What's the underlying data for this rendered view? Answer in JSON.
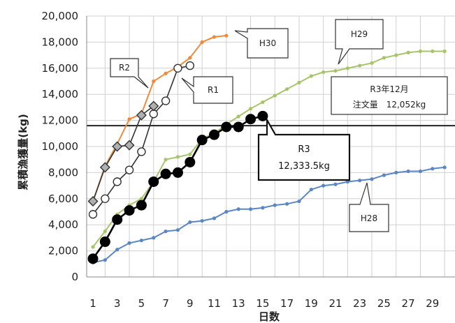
{
  "chart_data": {
    "type": "line",
    "xlabel": "日数",
    "ylabel": "累積漁獲量(kg)",
    "xlim": [
      1,
      30
    ],
    "ylim": [
      0,
      20000
    ],
    "x_ticks": [
      "1",
      "3",
      "5",
      "7",
      "9",
      "11",
      "13",
      "15",
      "17",
      "19",
      "21",
      "23",
      "25",
      "27",
      "29"
    ],
    "y_ticks": [
      "0",
      "2,000",
      "4,000",
      "6,000",
      "8,000",
      "10,000",
      "12,000",
      "14,000",
      "16,000",
      "18,000",
      "20,000"
    ],
    "grid": true,
    "reference_line": {
      "value": 11600,
      "color": "#222222"
    },
    "series": [
      {
        "name": "H30",
        "color": "#f08a3a",
        "marker": "dot",
        "x": [
          1,
          2,
          3,
          4,
          5,
          6,
          7,
          8,
          9,
          10,
          11,
          12
        ],
        "values": [
          5800,
          8500,
          10200,
          12100,
          12500,
          15000,
          15600,
          16100,
          16800,
          18000,
          18400,
          18500
        ]
      },
      {
        "name": "H29",
        "color": "#a8c46a",
        "marker": "dot",
        "x": [
          1,
          2,
          3,
          4,
          5,
          6,
          7,
          8,
          9,
          10,
          11,
          12,
          13,
          14,
          15,
          16,
          17,
          18,
          19,
          20,
          21,
          22,
          23,
          24,
          25,
          26,
          27,
          28,
          29,
          30
        ],
        "values": [
          2300,
          3500,
          4800,
          5500,
          6000,
          7300,
          9000,
          9200,
          9400,
          10600,
          11000,
          11700,
          12300,
          12900,
          13400,
          13900,
          14400,
          14900,
          15400,
          15700,
          15800,
          16000,
          16200,
          16400,
          16800,
          17000,
          17200,
          17300,
          17300,
          17300
        ]
      },
      {
        "name": "H28",
        "color": "#5b86c4",
        "marker": "dot",
        "x": [
          1,
          2,
          3,
          4,
          5,
          6,
          7,
          8,
          9,
          10,
          11,
          12,
          13,
          14,
          15,
          16,
          17,
          18,
          19,
          20,
          21,
          22,
          23,
          24,
          25,
          26,
          27,
          28,
          29,
          30
        ],
        "values": [
          1100,
          1300,
          2100,
          2600,
          2800,
          3000,
          3500,
          3600,
          4200,
          4300,
          4500,
          5000,
          5200,
          5200,
          5300,
          5500,
          5600,
          5800,
          6700,
          7000,
          7100,
          7300,
          7400,
          7500,
          7800,
          8000,
          8100,
          8100,
          8300,
          8400
        ]
      },
      {
        "name": "R1",
        "color": "#333333",
        "marker": "open-circle",
        "x": [
          1,
          2,
          3,
          4,
          5,
          6,
          7,
          8,
          9
        ],
        "values": [
          4800,
          6000,
          7300,
          8200,
          9600,
          12500,
          13500,
          16000,
          16200
        ]
      },
      {
        "name": "R2",
        "color": "#333333",
        "marker": "diamond",
        "x": [
          1,
          2,
          3,
          4,
          5,
          6
        ],
        "values": [
          5800,
          8400,
          10000,
          10100,
          12400,
          13100
        ]
      },
      {
        "name": "R3",
        "color": "#000000",
        "marker": "filled-circle",
        "x": [
          1,
          2,
          3,
          4,
          5,
          6,
          7,
          8,
          9,
          10,
          11,
          12,
          13,
          14,
          15
        ],
        "values": [
          1400,
          2700,
          4400,
          5100,
          5500,
          7300,
          7900,
          8000,
          8800,
          10500,
          10900,
          11500,
          11500,
          12100,
          12333.5
        ]
      }
    ],
    "annotations": [
      {
        "id": "h30",
        "text": "H30"
      },
      {
        "id": "h29",
        "text": "H29"
      },
      {
        "id": "r2",
        "text": "R2"
      },
      {
        "id": "r1",
        "text": "R1"
      },
      {
        "id": "order",
        "lines": [
          "R3年12月",
          "注文量　12,052kg"
        ]
      },
      {
        "id": "r3",
        "lines": [
          "R3",
          "12,333.5kg"
        ]
      },
      {
        "id": "h28",
        "text": "H28"
      }
    ]
  }
}
